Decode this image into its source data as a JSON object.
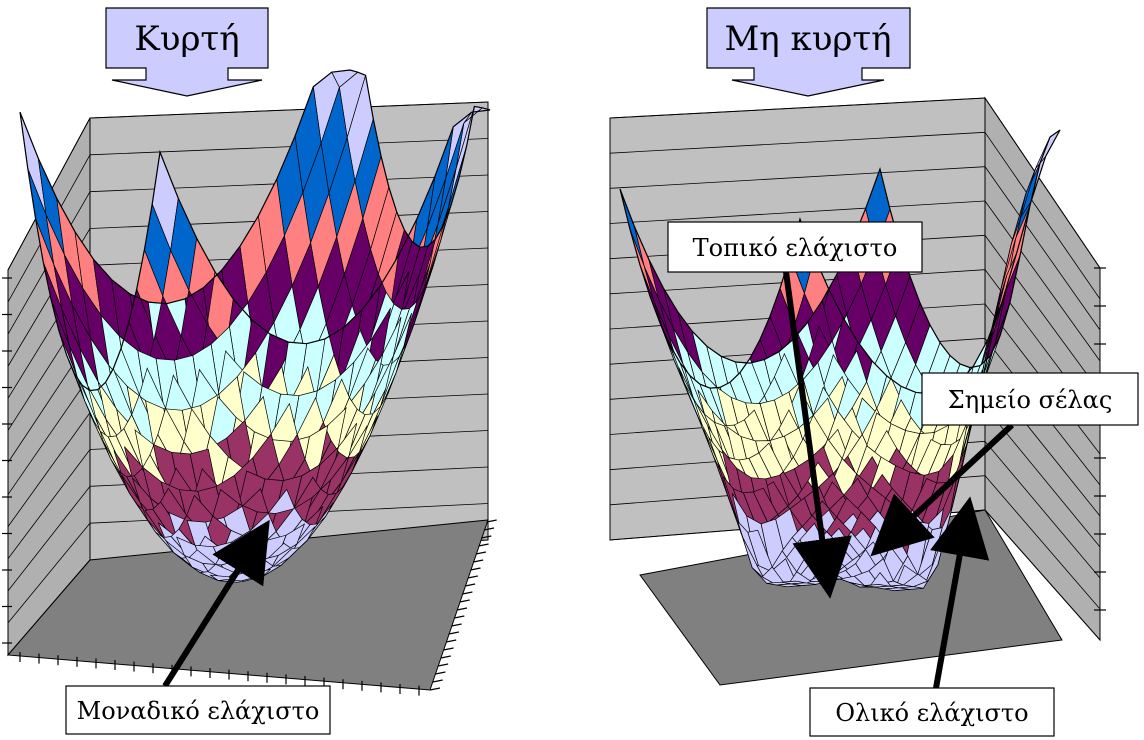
{
  "left_panel": {
    "title": "Κυρτή",
    "annotations": [
      {
        "id": "unique-minimum-label",
        "text": "Μοναδικό ελάχιστο"
      }
    ]
  },
  "right_panel": {
    "title": "Μη κυρτή",
    "annotations": [
      {
        "id": "local-minimum-label",
        "text": "Τοπικό ελάχιστο"
      },
      {
        "id": "saddle-point-label",
        "text": "Σημείο σέλας"
      },
      {
        "id": "global-minimum-label",
        "text": "Ολικό ελάχιστο"
      }
    ]
  },
  "colors": {
    "title_box": "#ccccff",
    "back_wall": "#c0c0c0",
    "floor": "#808080",
    "surface_bands": [
      "#ccccff",
      "#993366",
      "#ffffcc",
      "#ccffff",
      "#660066",
      "#ff8080",
      "#0066cc",
      "#ccccff",
      "#000080",
      "#ff00ff",
      "#ffff00",
      "#00ffff"
    ]
  }
}
